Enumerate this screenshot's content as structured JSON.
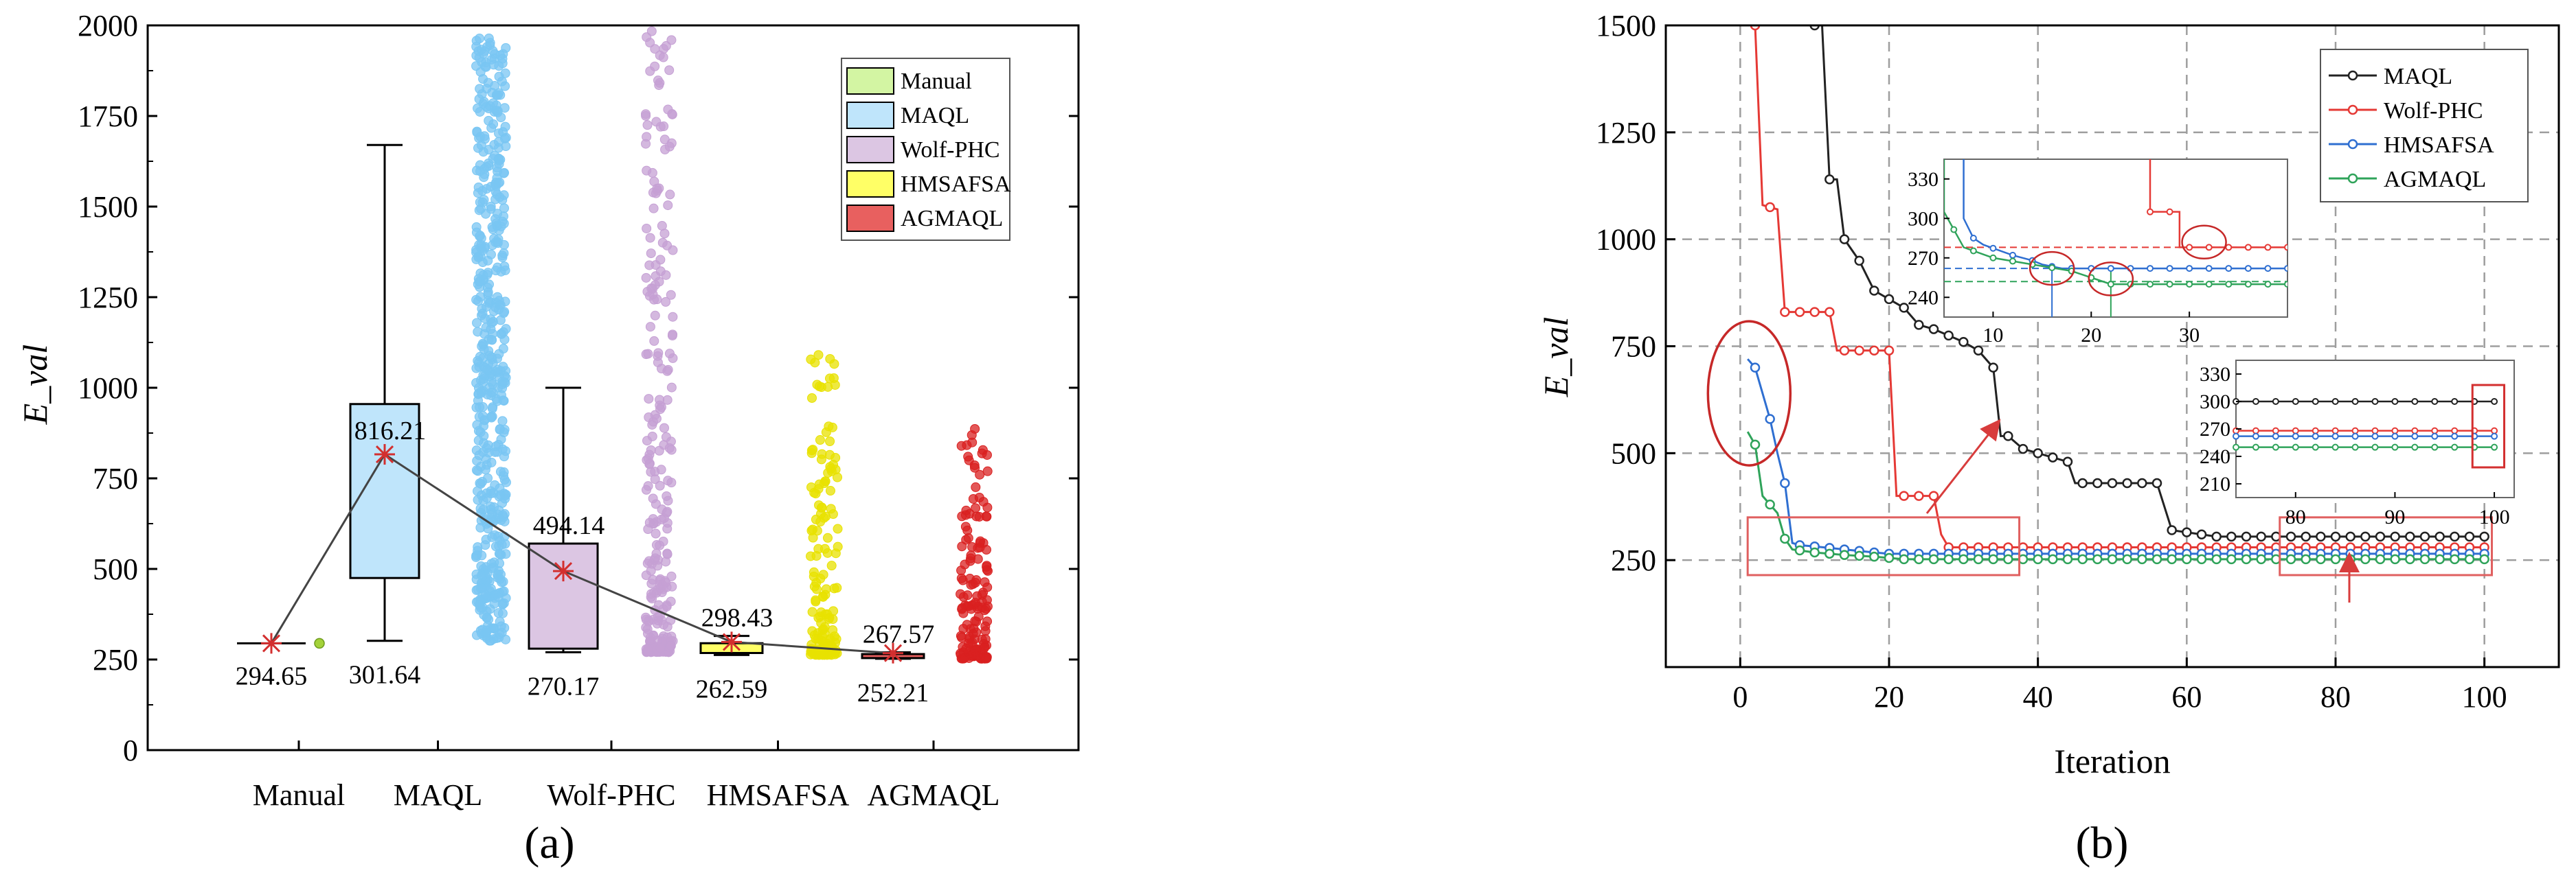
{
  "panel_a": {
    "caption": "(a)",
    "chart_data": {
      "type": "box",
      "ylabel": "E_val",
      "ylim": [
        0,
        2000
      ],
      "yticks": [
        "0",
        "250",
        "500",
        "750",
        "1000",
        "1250",
        "1500",
        "1750",
        "2000"
      ],
      "categories": [
        "Manual",
        "MAQL",
        "Wolf-PHC",
        "HMSAFSA",
        "AGMAQL"
      ],
      "legend": [
        "Manual",
        "MAQL",
        "Wolf-PHC",
        "HMSAFSA",
        "AGMAQL"
      ],
      "legend_placement": "top-right",
      "colors": {
        "Manual": "#d3f5a3",
        "MAQL": "#bfe5fb",
        "Wolf-PHC": "#dcc6e3",
        "HMSAFSA": "#ffff66",
        "AGMAQL": "#e8605f",
        "Manual_pts": "#a4d23a",
        "MAQL_pts": "#79c6f3",
        "Wolf-PHC_pts": "#c5a0d4",
        "HMSAFSA_pts": "#e8e200",
        "AGMAQL_pts": "#d92020",
        "mean_marker": "#d32f2f",
        "mean_line": "#444444"
      },
      "boxes": [
        {
          "name": "Manual",
          "whisker_low": 294.65,
          "q1": 294.65,
          "median": 294.65,
          "q3": 294.65,
          "whisker_high": 294.65,
          "mean": 294.65,
          "mean_label": "",
          "low_label": "294.65",
          "points_min": 294.65,
          "points_max": 294.65
        },
        {
          "name": "MAQL",
          "whisker_low": 301.64,
          "q1": 475,
          "median": 955,
          "q3": 955,
          "whisker_high": 1670,
          "mean": 816.21,
          "mean_label": "816.21",
          "low_label": "301.64",
          "points_min": 301.64,
          "points_max": 1980
        },
        {
          "name": "Wolf-PHC",
          "whisker_low": 270.17,
          "q1": 280,
          "median": 570,
          "q3": 570,
          "whisker_high": 1000,
          "mean": 494.14,
          "mean_label": "494.14",
          "low_label": "270.17",
          "points_min": 270.17,
          "points_max": 1990
        },
        {
          "name": "HMSAFSA",
          "whisker_low": 262.59,
          "q1": 268,
          "median": 295,
          "q3": 295,
          "whisker_high": 315,
          "mean": 298.43,
          "mean_label": "298.43",
          "low_label": "262.59",
          "points_min": 262.59,
          "points_max": 1100
        },
        {
          "name": "AGMAQL",
          "whisker_low": 252.21,
          "q1": 254,
          "median": 265,
          "q3": 265,
          "whisker_high": 270,
          "mean": 267.57,
          "mean_label": "267.57",
          "low_label": "252.21",
          "points_min": 252.21,
          "points_max": 890
        }
      ]
    }
  },
  "panel_b": {
    "caption": "(b)",
    "chart_data": {
      "type": "line",
      "xlabel": "Iteration",
      "ylabel": "E_val",
      "xlim": [
        -10,
        110
      ],
      "ylim": [
        0,
        1500
      ],
      "xticks": [
        "0",
        "20",
        "40",
        "60",
        "80",
        "100"
      ],
      "yticks": [
        "250",
        "500",
        "750",
        "1000",
        "1250",
        "1500"
      ],
      "grid": true,
      "legend_placement": "top-right",
      "series": [
        {
          "name": "MAQL",
          "color": "#222222",
          "points": [
            [
              10,
              1500
            ],
            [
              11,
              1500
            ],
            [
              12,
              1140
            ],
            [
              13,
              1140
            ],
            [
              14,
              1000
            ],
            [
              16,
              950
            ],
            [
              18,
              880
            ],
            [
              20,
              860
            ],
            [
              22,
              840
            ],
            [
              24,
              800
            ],
            [
              26,
              790
            ],
            [
              28,
              775
            ],
            [
              30,
              760
            ],
            [
              32,
              740
            ],
            [
              34,
              700
            ],
            [
              35,
              540
            ],
            [
              36,
              540
            ],
            [
              38,
              510
            ],
            [
              40,
              500
            ],
            [
              42,
              490
            ],
            [
              44,
              480
            ],
            [
              45,
              430
            ],
            [
              48,
              430
            ],
            [
              52,
              430
            ],
            [
              56,
              430
            ],
            [
              58,
              320
            ],
            [
              60,
              315
            ],
            [
              64,
              305
            ],
            [
              70,
              305
            ],
            [
              80,
              305
            ],
            [
              90,
              305
            ],
            [
              100,
              305
            ]
          ]
        },
        {
          "name": "Wolf-PHC",
          "color": "#e53935",
          "points": [
            [
              2,
              1500
            ],
            [
              3,
              1080
            ],
            [
              5,
              1070
            ],
            [
              6,
              830
            ],
            [
              8,
              830
            ],
            [
              12,
              830
            ],
            [
              13,
              740
            ],
            [
              16,
              740
            ],
            [
              20,
              740
            ],
            [
              21,
              400
            ],
            [
              24,
              400
            ],
            [
              26,
              400
            ],
            [
              27,
              310
            ],
            [
              28,
              280
            ],
            [
              30,
              280
            ],
            [
              40,
              280
            ],
            [
              60,
              280
            ],
            [
              80,
              280
            ],
            [
              100,
              280
            ]
          ]
        },
        {
          "name": "HMSAFSA",
          "color": "#2f6fd1",
          "points": [
            [
              1,
              720
            ],
            [
              2,
              700
            ],
            [
              3,
              640
            ],
            [
              4,
              580
            ],
            [
              5,
              500
            ],
            [
              6,
              430
            ],
            [
              7,
              290
            ],
            [
              8,
              285
            ],
            [
              10,
              282
            ],
            [
              14,
              275
            ],
            [
              18,
              268
            ],
            [
              20,
              265
            ],
            [
              40,
              265
            ],
            [
              60,
              265
            ],
            [
              80,
              265
            ],
            [
              100,
              265
            ]
          ]
        },
        {
          "name": "AGMAQL",
          "color": "#2fa35a",
          "points": [
            [
              1,
              550
            ],
            [
              2,
              520
            ],
            [
              3,
              400
            ],
            [
              4,
              380
            ],
            [
              5,
              360
            ],
            [
              6,
              300
            ],
            [
              7,
              275
            ],
            [
              10,
              268
            ],
            [
              14,
              262
            ],
            [
              18,
              258
            ],
            [
              22,
              252
            ],
            [
              40,
              252
            ],
            [
              60,
              252
            ],
            [
              80,
              252
            ],
            [
              100,
              252
            ]
          ]
        }
      ],
      "inset_top": {
        "xticks": [
          "10",
          "20",
          "30"
        ],
        "yticks": [
          "240",
          "270",
          "300",
          "330"
        ],
        "xlim": [
          5,
          40
        ],
        "ylim": [
          225,
          345
        ],
        "series": {
          "MAQL": [],
          "Wolf-PHC": [
            [
              26,
              345
            ],
            [
              26,
              305
            ],
            [
              29,
              305
            ],
            [
              29,
              278
            ],
            [
              40,
              278
            ]
          ],
          "HMSAFSA": [
            [
              7,
              345
            ],
            [
              7,
              300
            ],
            [
              8,
              285
            ],
            [
              9,
              280
            ],
            [
              12,
              272
            ],
            [
              14,
              268
            ],
            [
              15,
              265
            ],
            [
              17,
              262
            ],
            [
              40,
              262
            ]
          ],
          "AGMAQL": [
            [
              5,
              345
            ],
            [
              5,
              305
            ],
            [
              7,
              278
            ],
            [
              10,
              270
            ],
            [
              14,
              265
            ],
            [
              18,
              260
            ],
            [
              22,
              250
            ],
            [
              40,
              250
            ]
          ]
        },
        "ref_lines": [
          {
            "y": 278,
            "color": "#e53935"
          },
          {
            "y": 262,
            "color": "#2f6fd1"
          },
          {
            "y": 252,
            "color": "#2fa35a"
          }
        ],
        "vert_lines": [
          {
            "x": 16,
            "color": "#2f6fd1"
          },
          {
            "x": 22,
            "color": "#2fa35a"
          }
        ]
      },
      "inset_bottom": {
        "xticks": [
          "80",
          "90",
          "100"
        ],
        "yticks": [
          "210",
          "240",
          "270",
          "300",
          "330"
        ],
        "xlim": [
          74,
          102
        ],
        "ylim": [
          195,
          345
        ],
        "series": {
          "MAQL": 300,
          "Wolf-PHC": 268,
          "HMSAFSA": 262,
          "AGMAQL": 250
        }
      }
    }
  }
}
